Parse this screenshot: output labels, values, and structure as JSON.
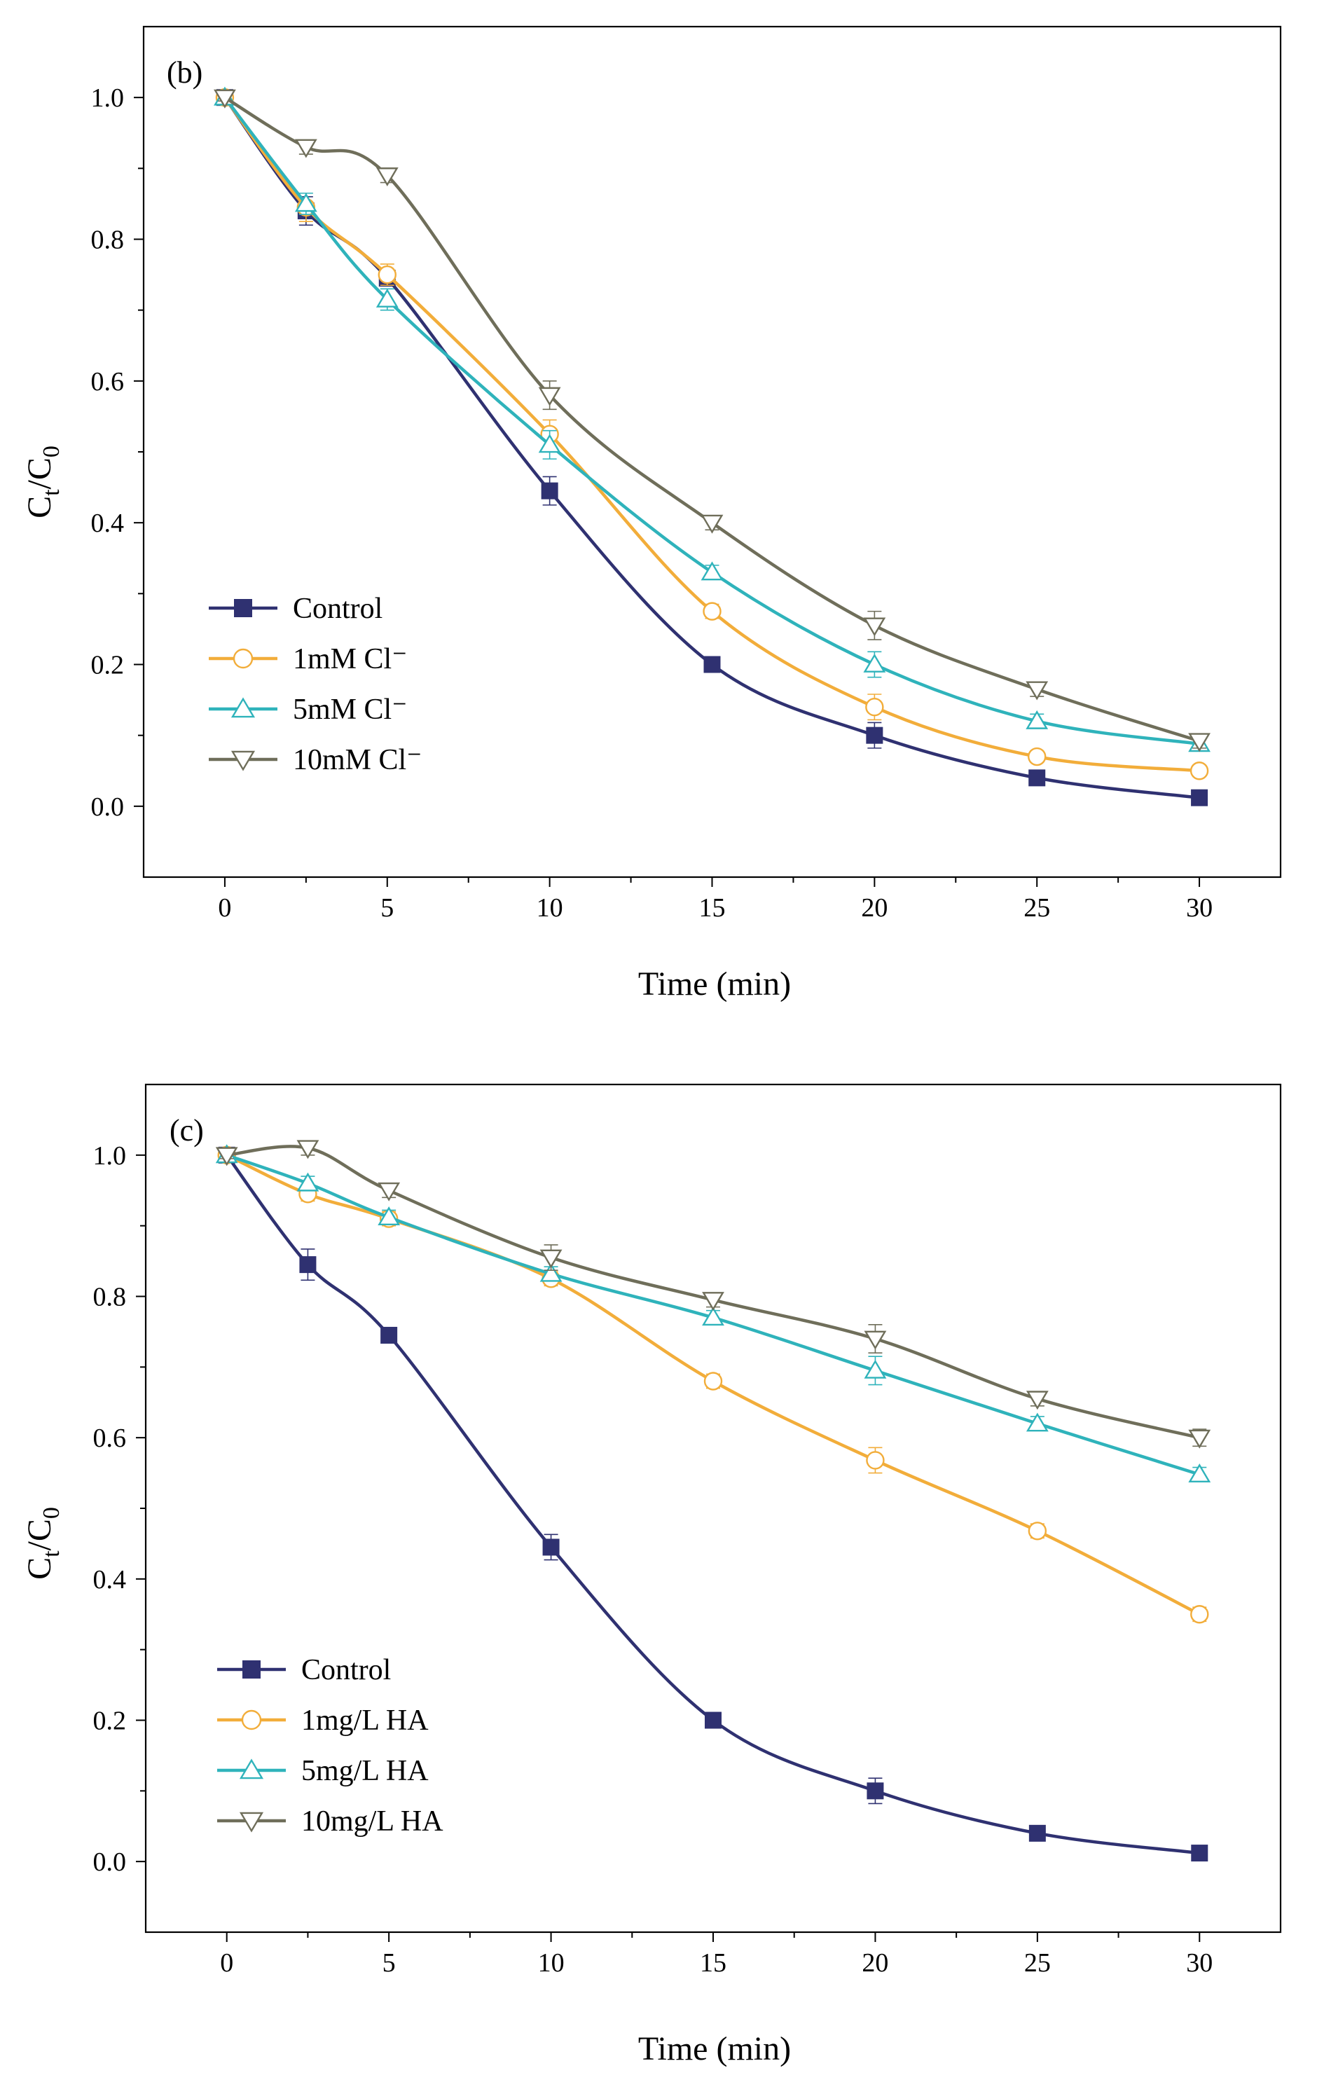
{
  "colors": {
    "control": "#2f3171",
    "s1": "#f2ad3a",
    "s2": "#2fb3bb",
    "s3": "#6f6e5a",
    "axis": "#000000"
  },
  "chart_data": [
    {
      "type": "line",
      "panel_label": "(b)",
      "xlabel": "Time (min)",
      "ylabel_main": "C",
      "ylabel_sub1": "t",
      "ylabel_mid": "/C",
      "ylabel_sub2": "0",
      "xlim": [
        -2.5,
        32.5
      ],
      "ylim": [
        -0.1,
        1.1
      ],
      "x_ticks": [
        0,
        5,
        10,
        15,
        20,
        25,
        30
      ],
      "x_tick_labels": [
        "0",
        "5",
        "10",
        "15",
        "20",
        "25",
        "30"
      ],
      "y_ticks": [
        0.0,
        0.2,
        0.4,
        0.6,
        0.8,
        1.0
      ],
      "y_tick_labels": [
        "0.0",
        "0.2",
        "0.4",
        "0.6",
        "0.8",
        "1.0"
      ],
      "x": [
        0,
        2.5,
        5,
        10,
        15,
        20,
        25,
        30
      ],
      "legend_position": "lower-left",
      "series": [
        {
          "name": "Control",
          "values": [
            1.0,
            0.84,
            0.745,
            0.445,
            0.2,
            0.1,
            0.04,
            0.012
          ],
          "errors": [
            0.005,
            0.02,
            0.01,
            0.02,
            0.005,
            0.018,
            0.005,
            0.005
          ]
        },
        {
          "name": "1mM Cl⁻",
          "values": [
            1.0,
            0.845,
            0.75,
            0.525,
            0.275,
            0.14,
            0.07,
            0.05
          ],
          "errors": [
            0.005,
            0.02,
            0.015,
            0.02,
            0.01,
            0.018,
            0.008,
            0.008
          ]
        },
        {
          "name": "5mM Cl⁻",
          "values": [
            1.0,
            0.85,
            0.715,
            0.51,
            0.33,
            0.2,
            0.12,
            0.088
          ],
          "errors": [
            0.005,
            0.015,
            0.015,
            0.02,
            0.01,
            0.018,
            0.01,
            0.01
          ]
        },
        {
          "name": "10mM Cl⁻",
          "values": [
            1.0,
            0.93,
            0.89,
            0.58,
            0.4,
            0.255,
            0.165,
            0.092
          ],
          "errors": [
            0.005,
            0.01,
            0.01,
            0.02,
            0.01,
            0.02,
            0.01,
            0.01
          ]
        }
      ]
    },
    {
      "type": "line",
      "panel_label": "(c)",
      "xlabel": "Time (min)",
      "ylabel_main": "C",
      "ylabel_sub1": "t",
      "ylabel_mid": "/C",
      "ylabel_sub2": "0",
      "xlim": [
        -2.5,
        32.5
      ],
      "ylim": [
        -0.1,
        1.1
      ],
      "x_ticks": [
        0,
        5,
        10,
        15,
        20,
        25,
        30
      ],
      "x_tick_labels": [
        "0",
        "5",
        "10",
        "15",
        "20",
        "25",
        "30"
      ],
      "y_ticks": [
        0.0,
        0.2,
        0.4,
        0.6,
        0.8,
        1.0
      ],
      "y_tick_labels": [
        "0.0",
        "0.2",
        "0.4",
        "0.6",
        "0.8",
        "1.0"
      ],
      "x": [
        0,
        2.5,
        5,
        10,
        15,
        20,
        25,
        30
      ],
      "legend_position": "lower-left",
      "series": [
        {
          "name": "Control",
          "values": [
            1.0,
            0.845,
            0.745,
            0.445,
            0.2,
            0.1,
            0.04,
            0.012
          ],
          "errors": [
            0.005,
            0.022,
            0.01,
            0.018,
            0.005,
            0.018,
            0.005,
            0.005
          ]
        },
        {
          "name": "1mg/L HA",
          "values": [
            1.0,
            0.945,
            0.91,
            0.825,
            0.68,
            0.568,
            0.468,
            0.35
          ],
          "errors": [
            0.005,
            0.01,
            0.01,
            0.01,
            0.01,
            0.018,
            0.01,
            0.01
          ]
        },
        {
          "name": "5mg/L HA",
          "values": [
            1.0,
            0.96,
            0.912,
            0.832,
            0.77,
            0.695,
            0.62,
            0.548
          ],
          "errors": [
            0.005,
            0.01,
            0.01,
            0.01,
            0.01,
            0.02,
            0.01,
            0.01
          ]
        },
        {
          "name": "10mg/L HA",
          "values": [
            1.0,
            1.01,
            0.95,
            0.855,
            0.795,
            0.74,
            0.655,
            0.6
          ],
          "errors": [
            0.005,
            0.01,
            0.01,
            0.018,
            0.01,
            0.02,
            0.01,
            0.012
          ]
        }
      ]
    }
  ]
}
